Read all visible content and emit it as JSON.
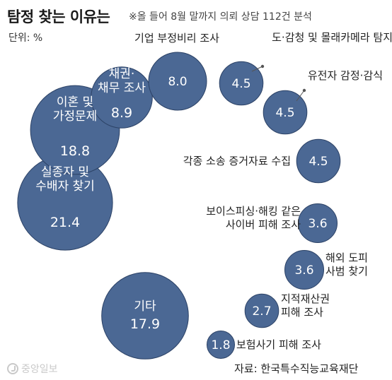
{
  "header": {
    "title": "탐정 찾는 이유는",
    "subtitle": "※올 들어 8월 말까지 의뢰 상담 112건 분석",
    "unit": "단위: %"
  },
  "footer": {
    "logo_text": "중앙일보",
    "source": "자료: 한국특수직능교육재단"
  },
  "colors": {
    "bubble": "#4b6894",
    "bubble_stroke": "#2c4266",
    "bubble_text": "#ffffff",
    "label_text": "#222222"
  },
  "chart_data": {
    "type": "bubble",
    "unit": "%",
    "items": [
      {
        "label": "실종자 및\n수배자 찾기",
        "value": 21.4
      },
      {
        "label": "이혼 및\n가정문제",
        "value": 18.8
      },
      {
        "label": "채권·\n채무 조사",
        "value": 8.9
      },
      {
        "label": "기업 부정비리 조사",
        "value": 8.0
      },
      {
        "label": "도·감청 및 몰래카메라 탐지",
        "value": 4.5
      },
      {
        "label": "유전자 감정·감식",
        "value": 4.5
      },
      {
        "label": "각종 소송 증거자료 수집",
        "value": 4.5
      },
      {
        "label": "보이스피싱·해킹 같은\n사이버 피해 조사",
        "value": 3.6
      },
      {
        "label": "해외 도피\n사범 찾기",
        "value": 3.6
      },
      {
        "label": "지적재산권\n피해 조사",
        "value": 2.7
      },
      {
        "label": "보험사기 피해 조사",
        "value": 1.8
      },
      {
        "label": "기타",
        "value": 17.9
      }
    ]
  }
}
